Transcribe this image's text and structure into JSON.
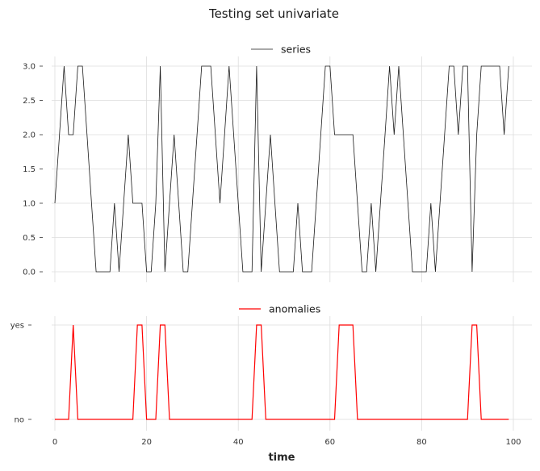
{
  "figure": {
    "title": "Testing set univariate"
  },
  "chart_data": [
    {
      "type": "line",
      "title": "",
      "legend": [
        "series"
      ],
      "legend_position": "upper center",
      "xlabel": "",
      "ylabel": "",
      "xlim": [
        -5,
        104
      ],
      "ylim": [
        -0.2,
        3.15
      ],
      "yticks": [
        "0.0",
        "0.5",
        "1.0",
        "1.5",
        "2.0",
        "2.5",
        "3.0"
      ],
      "grid": true,
      "color": "#1a1a1a",
      "series": [
        {
          "name": "series",
          "x_start": 0,
          "values": [
            1,
            2,
            3,
            2,
            2,
            3,
            3,
            2,
            1,
            0,
            0,
            0,
            0,
            1,
            0,
            1,
            2,
            1,
            1,
            1,
            0,
            0,
            1,
            3,
            0,
            1,
            2,
            1,
            0,
            0,
            1,
            2,
            3,
            3,
            3,
            2,
            1,
            2,
            3,
            2,
            1,
            0,
            0,
            0,
            3,
            0,
            1,
            2,
            1,
            0,
            0,
            0,
            0,
            1,
            0,
            0,
            0,
            1,
            2,
            3,
            3,
            2,
            2,
            2,
            2,
            2,
            1,
            0,
            0,
            1,
            0,
            1,
            2,
            3,
            2,
            3,
            2,
            1,
            0,
            0,
            0,
            0,
            1,
            0,
            1,
            2,
            3,
            3,
            2,
            3,
            3,
            0,
            2,
            3,
            3,
            3,
            3,
            3,
            2,
            3
          ]
        }
      ]
    },
    {
      "type": "line",
      "title": "",
      "legend": [
        "anomalies"
      ],
      "legend_position": "upper center",
      "xlabel": "time",
      "ylabel": "",
      "xlim": [
        -5,
        104
      ],
      "xticks": [
        "0",
        "20",
        "40",
        "60",
        "80",
        "100"
      ],
      "yticks": [
        "no",
        "yes"
      ],
      "grid": true,
      "color": "#ff0000",
      "series": [
        {
          "name": "anomalies",
          "x_start": 0,
          "values": [
            0,
            0,
            0,
            0,
            1,
            0,
            0,
            0,
            0,
            0,
            0,
            0,
            0,
            0,
            0,
            0,
            0,
            0,
            1,
            1,
            0,
            0,
            0,
            1,
            1,
            0,
            0,
            0,
            0,
            0,
            0,
            0,
            0,
            0,
            0,
            0,
            0,
            0,
            0,
            0,
            0,
            0,
            0,
            0,
            1,
            1,
            0,
            0,
            0,
            0,
            0,
            0,
            0,
            0,
            0,
            0,
            0,
            0,
            0,
            0,
            0,
            0,
            1,
            1,
            1,
            1,
            0,
            0,
            0,
            0,
            0,
            0,
            0,
            0,
            0,
            0,
            0,
            0,
            0,
            0,
            0,
            0,
            0,
            0,
            0,
            0,
            0,
            0,
            0,
            0,
            0,
            1,
            1,
            0,
            0,
            0,
            0,
            0,
            0,
            0
          ]
        }
      ]
    }
  ]
}
